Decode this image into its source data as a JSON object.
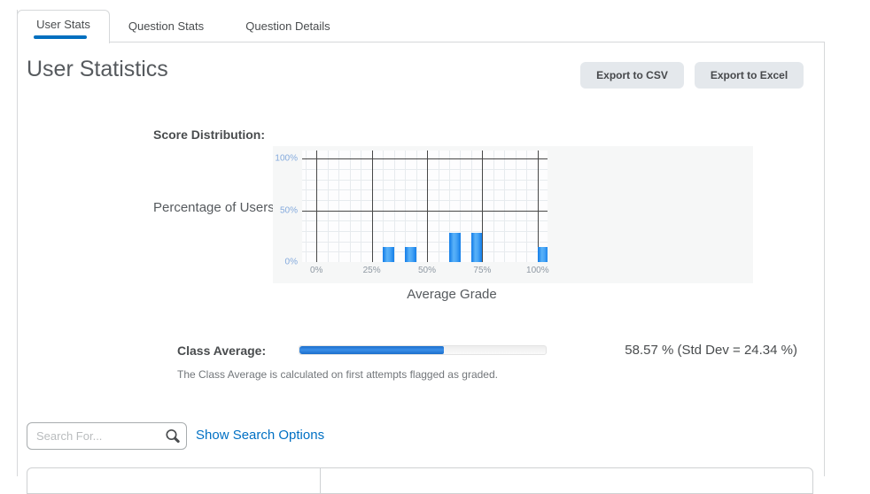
{
  "tabs": [
    {
      "label": "User Stats",
      "active": true
    },
    {
      "label": "Question Stats",
      "active": false
    },
    {
      "label": "Question Details",
      "active": false
    }
  ],
  "page": {
    "title": "User Statistics"
  },
  "toolbar": {
    "export_csv_label": "Export to CSV",
    "export_excel_label": "Export to Excel"
  },
  "chart_section": {
    "label": "Score Distribution:"
  },
  "chart_data": {
    "type": "bar",
    "title": "Score Distribution",
    "xlabel": "Average Grade",
    "ylabel": "Percentage of Users",
    "xlim": [
      -6.5,
      104.5
    ],
    "ylim": [
      0,
      108
    ],
    "x_ticks": [
      {
        "value": 0,
        "label": "0%"
      },
      {
        "value": 25,
        "label": "25%"
      },
      {
        "value": 50,
        "label": "50%"
      },
      {
        "value": 75,
        "label": "75%"
      },
      {
        "value": 100,
        "label": "100%"
      }
    ],
    "y_ticks": [
      {
        "value": 0,
        "label": "0%"
      },
      {
        "value": 50,
        "label": "50%"
      },
      {
        "value": 100,
        "label": "100%"
      }
    ],
    "grid": {
      "on": true,
      "minor_x_step": 5,
      "minor_y_step": 10
    },
    "bars": [
      {
        "x_start": 30,
        "x_end": 35,
        "value": 14.3
      },
      {
        "x_start": 40,
        "x_end": 45,
        "value": 14.3
      },
      {
        "x_start": 60,
        "x_end": 65,
        "value": 28.6
      },
      {
        "x_start": 70,
        "x_end": 75,
        "value": 28.6
      },
      {
        "x_start": 100,
        "x_end": 105,
        "value": 14.3
      }
    ],
    "bar_color": "#2e97f3",
    "legend": "none"
  },
  "class_average": {
    "label": "Class Average:",
    "percent": 58.57,
    "std_dev": 24.34,
    "display": "58.57 % (Std Dev = 24.34 %)",
    "note": "The Class Average is calculated on first attempts flagged as graded."
  },
  "search": {
    "placeholder": "Search For...",
    "options_link_label": "Show Search Options"
  },
  "colors": {
    "accent_blue": "#006fbf",
    "bar_blue": "#2e97f3",
    "progress_blue": "#1d72d2",
    "link_blue": "#0070c4"
  }
}
